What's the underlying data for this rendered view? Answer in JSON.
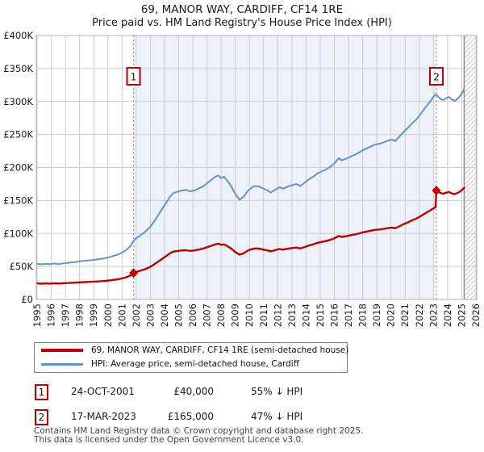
{
  "title": "69, MANOR WAY, CARDIFF, CF14 1RE",
  "subtitle": "Price paid vs. HM Land Registry's House Price Index (HPI)",
  "chart_data": {
    "type": "line",
    "title": "69, MANOR WAY, CARDIFF, CF14 1RE",
    "subtitle": "Price paid vs. HM Land Registry's House Price Index (HPI)",
    "x_range": [
      1994.94,
      2026.06
    ],
    "y_range_k": [
      0,
      400
    ],
    "grid": true,
    "x_axis": {
      "years": [
        1995,
        1996,
        1997,
        1998,
        1999,
        2000,
        2001,
        2002,
        2003,
        2004,
        2005,
        2006,
        2007,
        2008,
        2009,
        2010,
        2011,
        2012,
        2013,
        2014,
        2015,
        2016,
        2017,
        2018,
        2019,
        2020,
        2021,
        2022,
        2023,
        2024,
        2025,
        2026
      ]
    },
    "y_axis": {
      "tick_values_k": [
        0,
        50,
        100,
        150,
        200,
        250,
        300,
        350,
        400
      ],
      "tick_labels": [
        "£0",
        "£50K",
        "£100K",
        "£150K",
        "£200K",
        "£250K",
        "£300K",
        "£350K",
        "£400K"
      ]
    },
    "colors": {
      "property_line": "#c00000",
      "hpi_line": "#6691c6",
      "sale_dotted_line": "#f07070",
      "shade": "#edf2fa",
      "grid": "#cccccc",
      "plot_border": "#b0b0b0",
      "hatch_line": "#c9c9c9",
      "hatch_edge": "#8c8c8c",
      "marker_box_border": "#c00000"
    },
    "shaded_region": [
      2001.81,
      2023.21
    ],
    "hatch_start": 2025.17,
    "sales": [
      {
        "label": "1",
        "year": 2001.81,
        "price_k": 40
      },
      {
        "label": "2",
        "year": 2023.21,
        "price_k": 165
      }
    ],
    "series": [
      {
        "name": "69, MANOR WAY, CARDIFF, CF14 1RE (semi-detached house)",
        "color": "#c00000",
        "width": 2.4,
        "points": [
          [
            1995.0,
            24.3
          ],
          [
            1995.3,
            23.9
          ],
          [
            1995.6,
            24.3
          ],
          [
            1995.9,
            24
          ],
          [
            1996.2,
            24.5
          ],
          [
            1996.5,
            24.1
          ],
          [
            1996.8,
            24.5
          ],
          [
            1997.1,
            24.8
          ],
          [
            1997.4,
            25.2
          ],
          [
            1997.7,
            25.4
          ],
          [
            1998.0,
            25.9
          ],
          [
            1998.3,
            26.3
          ],
          [
            1998.6,
            26.5
          ],
          [
            1998.9,
            26.8
          ],
          [
            1999.2,
            27.2
          ],
          [
            1999.5,
            27.6
          ],
          [
            1999.8,
            28.1
          ],
          [
            2000.1,
            28.8
          ],
          [
            2000.4,
            29.7
          ],
          [
            2000.7,
            30.6
          ],
          [
            2001.0,
            31.9
          ],
          [
            2001.3,
            33.7
          ],
          [
            2001.6,
            36.4
          ],
          [
            2001.81,
            40
          ],
          [
            2002.0,
            41.8
          ],
          [
            2002.3,
            43.6
          ],
          [
            2002.6,
            45.8
          ],
          [
            2002.9,
            48.5
          ],
          [
            2003.2,
            52.1
          ],
          [
            2003.5,
            56.6
          ],
          [
            2003.8,
            61.1
          ],
          [
            2004.1,
            65.6
          ],
          [
            2004.4,
            70.1
          ],
          [
            2004.6,
            72.4
          ],
          [
            2004.9,
            73.3
          ],
          [
            2005.2,
            74.2
          ],
          [
            2005.5,
            74.6
          ],
          [
            2005.8,
            73.7
          ],
          [
            2006.1,
            74.2
          ],
          [
            2006.4,
            75.5
          ],
          [
            2006.7,
            76.9
          ],
          [
            2007.0,
            79.1
          ],
          [
            2007.3,
            81.3
          ],
          [
            2007.6,
            83.6
          ],
          [
            2007.8,
            84.5
          ],
          [
            2008.0,
            82.7
          ],
          [
            2008.2,
            83.6
          ],
          [
            2008.4,
            81.3
          ],
          [
            2008.7,
            77.3
          ],
          [
            2009.0,
            71.9
          ],
          [
            2009.3,
            67.9
          ],
          [
            2009.6,
            70.1
          ],
          [
            2009.9,
            74.2
          ],
          [
            2010.2,
            76.4
          ],
          [
            2010.4,
            77.3
          ],
          [
            2010.7,
            76.9
          ],
          [
            2011.0,
            75.5
          ],
          [
            2011.3,
            74.2
          ],
          [
            2011.5,
            72.8
          ],
          [
            2011.8,
            74.6
          ],
          [
            2012.1,
            76.4
          ],
          [
            2012.4,
            75.5
          ],
          [
            2012.7,
            76.9
          ],
          [
            2013.0,
            77.8
          ],
          [
            2013.3,
            78.7
          ],
          [
            2013.6,
            77.3
          ],
          [
            2013.9,
            79.5
          ],
          [
            2014.2,
            81.8
          ],
          [
            2014.5,
            83.6
          ],
          [
            2014.8,
            85.8
          ],
          [
            2015.1,
            87.2
          ],
          [
            2015.4,
            88.5
          ],
          [
            2015.7,
            90.3
          ],
          [
            2016.0,
            92.6
          ],
          [
            2016.3,
            96.2
          ],
          [
            2016.5,
            94.8
          ],
          [
            2016.8,
            95.7
          ],
          [
            2017.1,
            97.1
          ],
          [
            2017.4,
            98.4
          ],
          [
            2017.7,
            99.8
          ],
          [
            2018.0,
            101.6
          ],
          [
            2018.3,
            102.9
          ],
          [
            2018.6,
            104.3
          ],
          [
            2018.9,
            105.6
          ],
          [
            2019.2,
            106.1
          ],
          [
            2019.5,
            107
          ],
          [
            2019.8,
            108.3
          ],
          [
            2020.1,
            108.8
          ],
          [
            2020.3,
            107.9
          ],
          [
            2020.6,
            111
          ],
          [
            2020.9,
            114.2
          ],
          [
            2021.2,
            116.8
          ],
          [
            2021.5,
            120
          ],
          [
            2021.8,
            122.7
          ],
          [
            2022.1,
            126.3
          ],
          [
            2022.4,
            130.3
          ],
          [
            2022.7,
            133.9
          ],
          [
            2023.0,
            138
          ],
          [
            2023.15,
            139.8
          ],
          [
            2023.21,
            165
          ],
          [
            2023.3,
            163.4
          ],
          [
            2023.5,
            161.3
          ],
          [
            2023.7,
            160.2
          ],
          [
            2023.9,
            161.8
          ],
          [
            2024.1,
            162.9
          ],
          [
            2024.3,
            160.7
          ],
          [
            2024.5,
            159.7
          ],
          [
            2024.7,
            161.3
          ],
          [
            2024.9,
            163.9
          ],
          [
            2025.05,
            166.6
          ],
          [
            2025.17,
            169.3
          ]
        ]
      },
      {
        "name": "HPI: Average price, semi-detached house, Cardiff",
        "color": "#6691c6",
        "width": 2,
        "points": [
          [
            1995.0,
            54
          ],
          [
            1995.3,
            53.2
          ],
          [
            1995.6,
            54
          ],
          [
            1995.9,
            53.5
          ],
          [
            1996.2,
            54.6
          ],
          [
            1996.5,
            53.6
          ],
          [
            1996.8,
            54.6
          ],
          [
            1997.1,
            55.2
          ],
          [
            1997.4,
            56.1
          ],
          [
            1997.7,
            56.6
          ],
          [
            1998.0,
            57.6
          ],
          [
            1998.3,
            58.6
          ],
          [
            1998.6,
            59
          ],
          [
            1998.9,
            59.6
          ],
          [
            1999.2,
            60.6
          ],
          [
            1999.5,
            61.5
          ],
          [
            1999.8,
            62.6
          ],
          [
            2000.1,
            64
          ],
          [
            2000.4,
            66.1
          ],
          [
            2000.7,
            68.1
          ],
          [
            2001.0,
            71
          ],
          [
            2001.3,
            75
          ],
          [
            2001.6,
            81
          ],
          [
            2001.81,
            89
          ],
          [
            2002.0,
            93
          ],
          [
            2002.3,
            97
          ],
          [
            2002.6,
            102
          ],
          [
            2002.9,
            108
          ],
          [
            2003.2,
            116
          ],
          [
            2003.5,
            126
          ],
          [
            2003.8,
            136
          ],
          [
            2004.1,
            146
          ],
          [
            2004.4,
            156
          ],
          [
            2004.6,
            161
          ],
          [
            2004.9,
            163
          ],
          [
            2005.2,
            165
          ],
          [
            2005.5,
            166
          ],
          [
            2005.8,
            164
          ],
          [
            2006.1,
            165
          ],
          [
            2006.4,
            168
          ],
          [
            2006.7,
            171
          ],
          [
            2007.0,
            176
          ],
          [
            2007.3,
            181
          ],
          [
            2007.6,
            186
          ],
          [
            2007.8,
            188
          ],
          [
            2008.0,
            184
          ],
          [
            2008.2,
            186
          ],
          [
            2008.4,
            181
          ],
          [
            2008.7,
            172
          ],
          [
            2009.0,
            160
          ],
          [
            2009.3,
            151
          ],
          [
            2009.6,
            156
          ],
          [
            2009.9,
            165
          ],
          [
            2010.2,
            170
          ],
          [
            2010.4,
            172
          ],
          [
            2010.7,
            171
          ],
          [
            2011.0,
            168
          ],
          [
            2011.3,
            165
          ],
          [
            2011.5,
            162
          ],
          [
            2011.8,
            166
          ],
          [
            2012.1,
            170
          ],
          [
            2012.4,
            168
          ],
          [
            2012.7,
            171
          ],
          [
            2013.0,
            173
          ],
          [
            2013.3,
            175
          ],
          [
            2013.6,
            172
          ],
          [
            2013.9,
            177
          ],
          [
            2014.2,
            182
          ],
          [
            2014.5,
            186
          ],
          [
            2014.8,
            191
          ],
          [
            2015.1,
            194
          ],
          [
            2015.4,
            197
          ],
          [
            2015.7,
            201
          ],
          [
            2016.0,
            206
          ],
          [
            2016.3,
            214
          ],
          [
            2016.5,
            211
          ],
          [
            2016.8,
            213
          ],
          [
            2017.1,
            216
          ],
          [
            2017.4,
            219
          ],
          [
            2017.7,
            222
          ],
          [
            2018.0,
            226
          ],
          [
            2018.3,
            229
          ],
          [
            2018.6,
            232
          ],
          [
            2018.9,
            235
          ],
          [
            2019.2,
            236
          ],
          [
            2019.5,
            238
          ],
          [
            2019.8,
            241
          ],
          [
            2020.1,
            242
          ],
          [
            2020.3,
            240
          ],
          [
            2020.6,
            247
          ],
          [
            2020.9,
            254
          ],
          [
            2021.2,
            260
          ],
          [
            2021.5,
            267
          ],
          [
            2021.8,
            273
          ],
          [
            2022.1,
            281
          ],
          [
            2022.4,
            290
          ],
          [
            2022.7,
            298
          ],
          [
            2023.0,
            307
          ],
          [
            2023.15,
            311
          ],
          [
            2023.3,
            308
          ],
          [
            2023.5,
            304
          ],
          [
            2023.7,
            302
          ],
          [
            2023.9,
            305
          ],
          [
            2024.1,
            307
          ],
          [
            2024.3,
            303
          ],
          [
            2024.5,
            301
          ],
          [
            2024.7,
            304
          ],
          [
            2024.9,
            309
          ],
          [
            2025.05,
            314
          ],
          [
            2025.17,
            319
          ]
        ]
      }
    ]
  },
  "legend": {
    "items": [
      {
        "label": "69, MANOR WAY, CARDIFF, CF14 1RE (semi-detached house)",
        "color": "#c00000"
      },
      {
        "label": "HPI: Average price, semi-detached house, Cardiff",
        "color": "#6691c6"
      }
    ]
  },
  "transactions": [
    {
      "num": "1",
      "date": "24-OCT-2001",
      "price": "£40,000",
      "hpi": "55% ↓ HPI"
    },
    {
      "num": "2",
      "date": "17-MAR-2023",
      "price": "£165,000",
      "hpi": "47% ↓ HPI"
    }
  ],
  "footer": {
    "line1": "Contains HM Land Registry data © Crown copyright and database right 2025.",
    "line2": "This data is licensed under the Open Government Licence v3.0."
  }
}
